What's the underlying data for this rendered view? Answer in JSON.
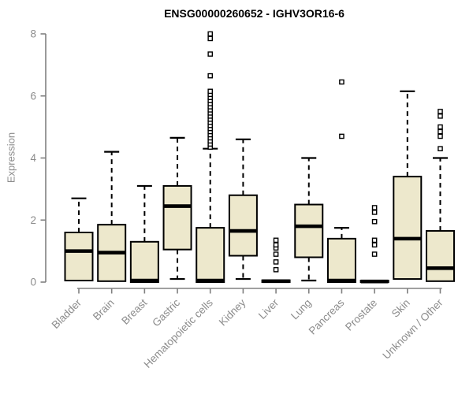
{
  "title": "ENSG00000260652 - IGHV3OR16-6",
  "chart_data": {
    "type": "boxplot",
    "title": "ENSG00000260652 - IGHV3OR16-6",
    "xlabel": "",
    "ylabel": "Expression",
    "ylim": [
      0,
      8
    ],
    "yticks": [
      0,
      2,
      4,
      6,
      8
    ],
    "grid": false,
    "legend": false,
    "x_label_rotation": 45,
    "categories": [
      "Bladder",
      "Brain",
      "Breast",
      "Gastric",
      "Hematopoietic cells",
      "Kidney",
      "Liver",
      "Lung",
      "Pancreas",
      "Prostate",
      "Skin",
      "Unknown / Other"
    ],
    "series": [
      {
        "name": "Bladder",
        "whislo": 0.05,
        "q1": 0.05,
        "med": 1.0,
        "q3": 1.6,
        "whishi": 2.7,
        "outliers": []
      },
      {
        "name": "Brain",
        "whislo": 0.03,
        "q1": 0.03,
        "med": 0.95,
        "q3": 1.85,
        "whishi": 4.2,
        "outliers": []
      },
      {
        "name": "Breast",
        "whislo": 0.0,
        "q1": 0.0,
        "med": 0.05,
        "q3": 1.3,
        "whishi": 3.1,
        "outliers": []
      },
      {
        "name": "Gastric",
        "whislo": 0.1,
        "q1": 1.05,
        "med": 2.45,
        "q3": 3.1,
        "whishi": 4.65,
        "outliers": []
      },
      {
        "name": "Hematopoietic cells",
        "whislo": 0.0,
        "q1": 0.0,
        "med": 0.05,
        "q3": 1.75,
        "whishi": 4.3,
        "outliers": [
          4.35,
          4.45,
          4.55,
          4.65,
          4.75,
          4.85,
          4.95,
          5.05,
          5.15,
          5.25,
          5.35,
          5.45,
          5.55,
          5.65,
          5.75,
          5.85,
          5.95,
          6.05,
          6.15,
          6.65,
          7.35,
          7.85,
          8.0
        ]
      },
      {
        "name": "Kidney",
        "whislo": 0.1,
        "q1": 0.85,
        "med": 1.65,
        "q3": 2.8,
        "whishi": 4.6,
        "outliers": []
      },
      {
        "name": "Liver",
        "whislo": 0.0,
        "q1": 0.0,
        "med": 0.03,
        "q3": 0.06,
        "whishi": 0.06,
        "outliers": [
          0.4,
          0.65,
          0.9,
          1.1,
          1.2,
          1.35
        ]
      },
      {
        "name": "Lung",
        "whislo": 0.05,
        "q1": 0.8,
        "med": 1.8,
        "q3": 2.5,
        "whishi": 4.0,
        "outliers": []
      },
      {
        "name": "Pancreas",
        "whislo": 0.0,
        "q1": 0.0,
        "med": 0.05,
        "q3": 1.4,
        "whishi": 1.75,
        "outliers": [
          4.7,
          6.45
        ]
      },
      {
        "name": "Prostate",
        "whislo": 0.0,
        "q1": 0.0,
        "med": 0.02,
        "q3": 0.05,
        "whishi": 0.05,
        "outliers": [
          0.9,
          1.2,
          1.35,
          1.95,
          2.25,
          2.4
        ]
      },
      {
        "name": "Skin",
        "whislo": 0.1,
        "q1": 0.1,
        "med": 1.4,
        "q3": 3.4,
        "whishi": 6.15,
        "outliers": []
      },
      {
        "name": "Unknown / Other",
        "whislo": 0.03,
        "q1": 0.03,
        "med": 0.45,
        "q3": 1.65,
        "whishi": 4.0,
        "outliers": [
          4.3,
          4.7,
          4.85,
          5.0,
          5.35,
          5.5
        ]
      }
    ],
    "colors": {
      "box_fill": "#EDE8CC",
      "box_border": "#000000",
      "median": "#000000",
      "whisker": "#000000",
      "outlier": "#000000",
      "axis": "#808080",
      "tick_label": "#8C8C8C",
      "axis_label": "#8C8C8C",
      "title": "#000000",
      "background": "#FFFFFF"
    }
  }
}
